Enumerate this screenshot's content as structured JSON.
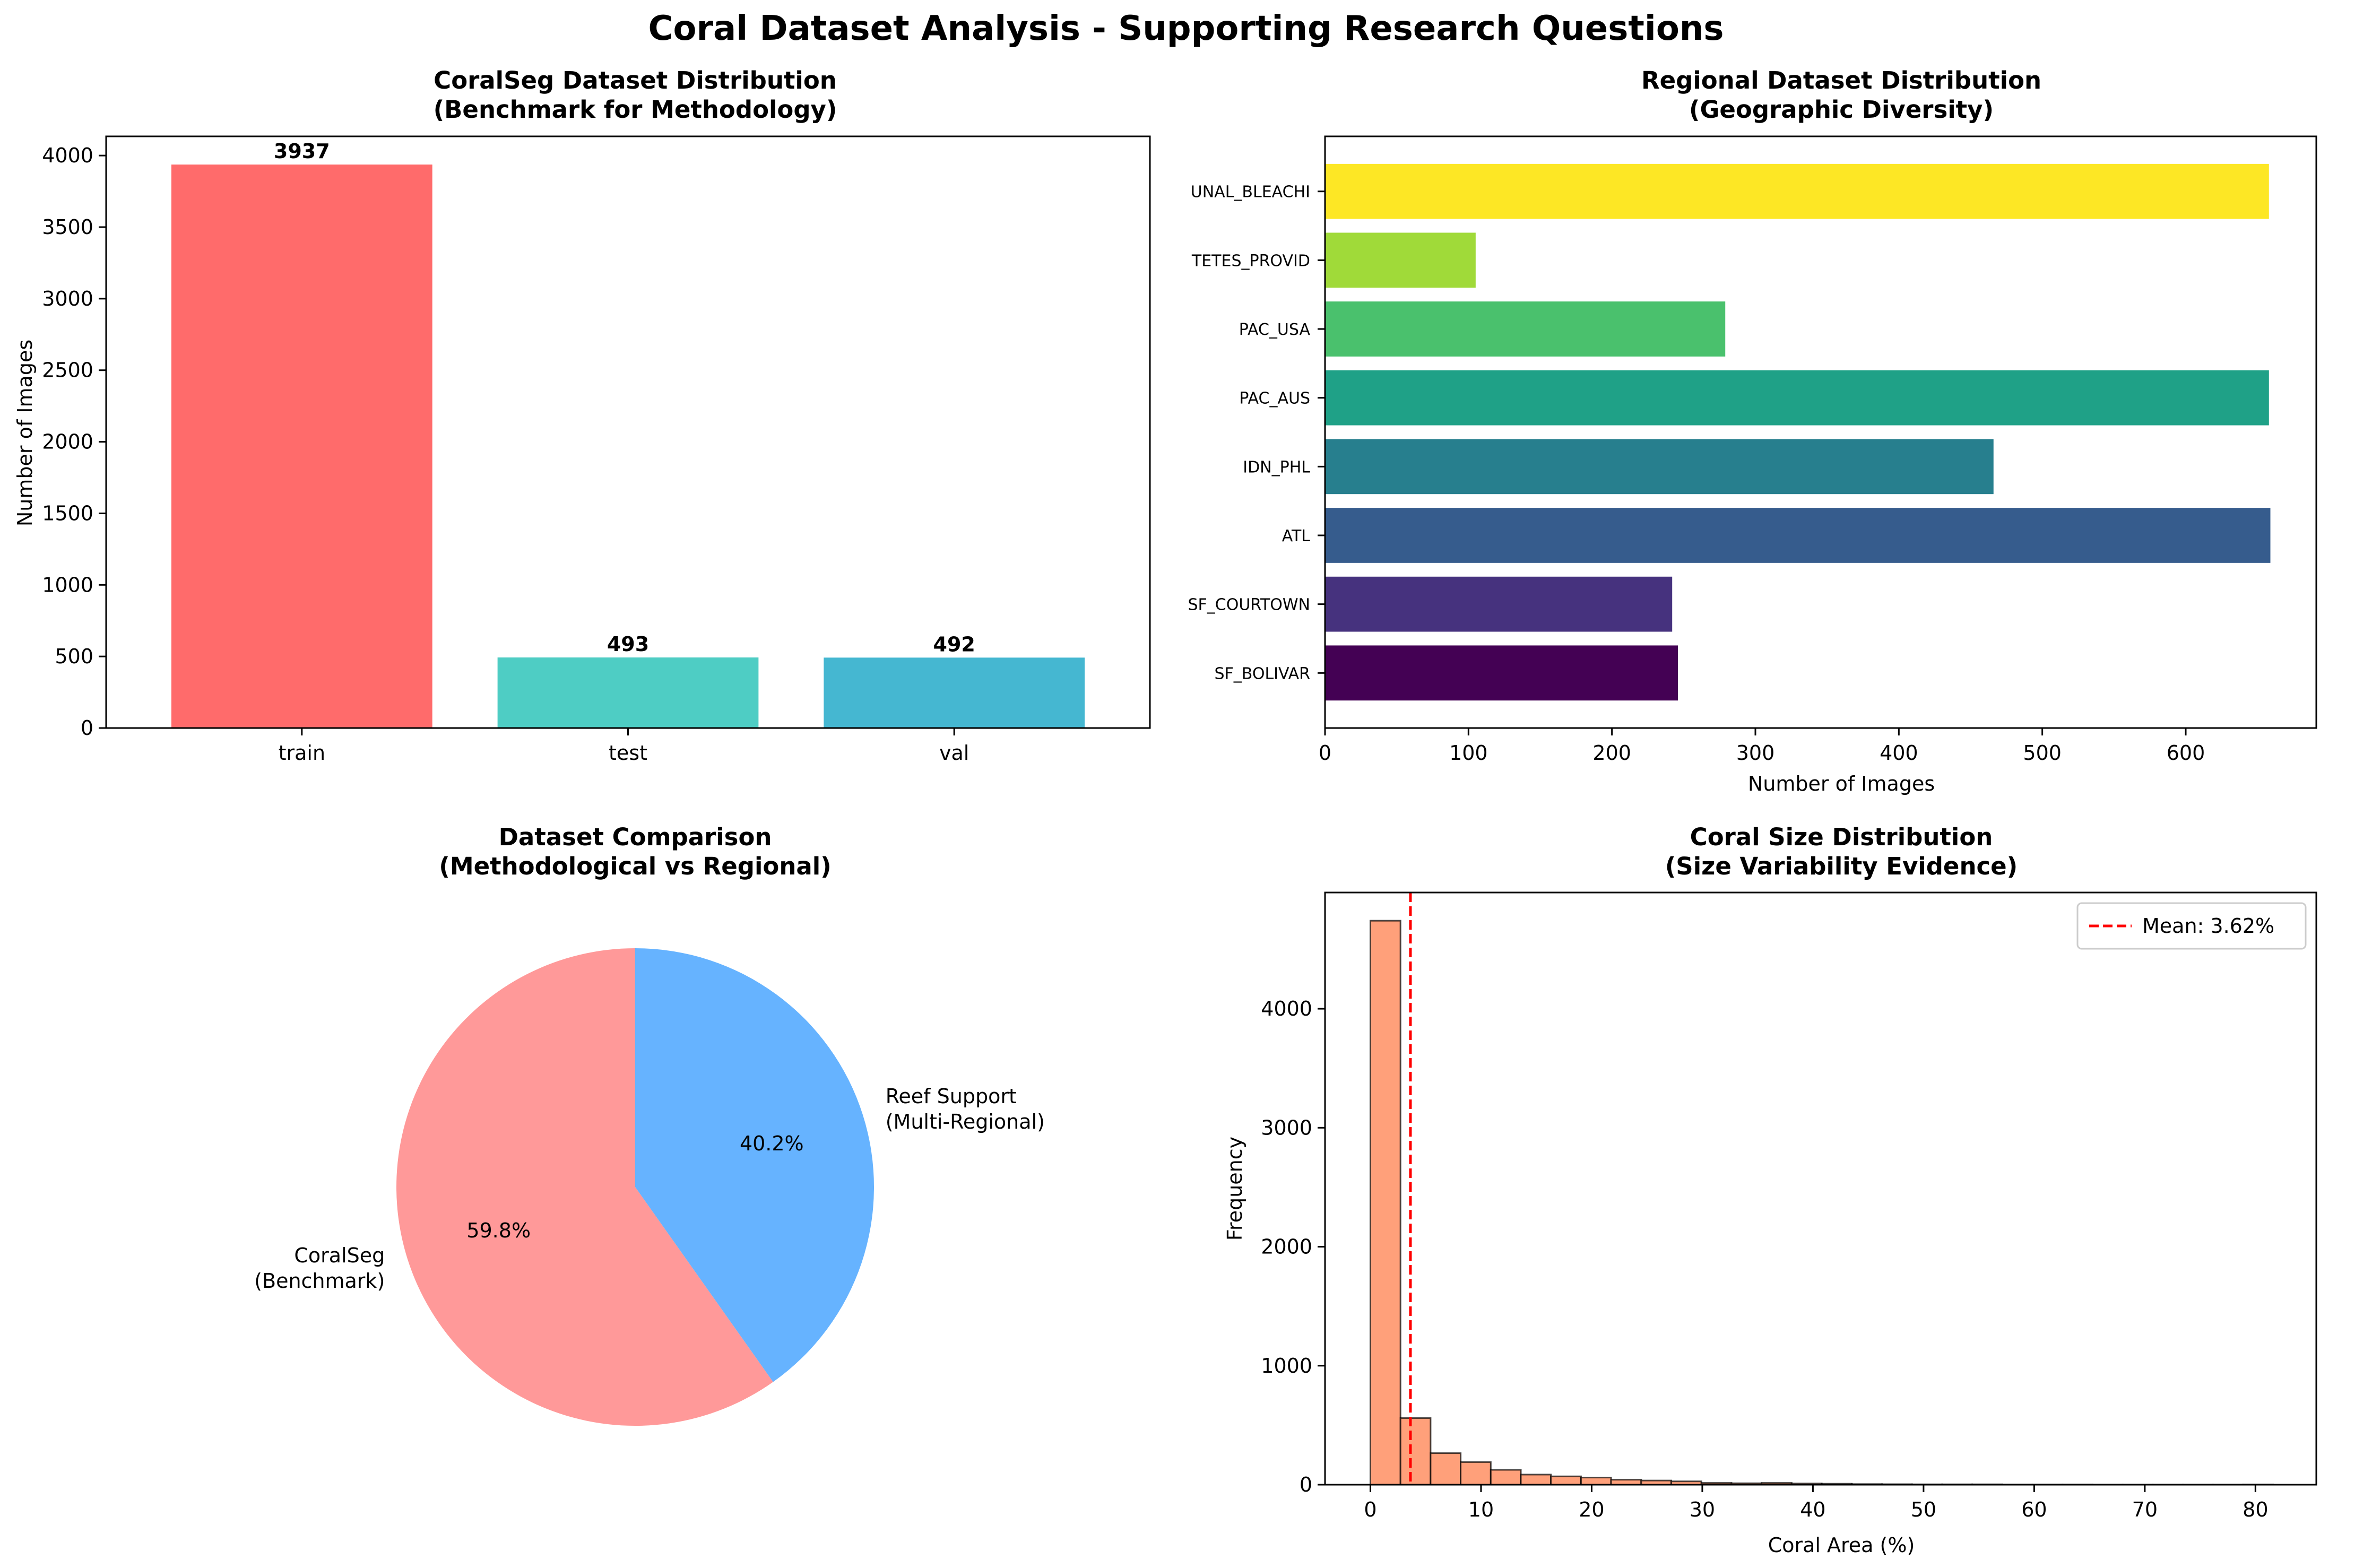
{
  "suptitle": "Coral Dataset Analysis - Supporting Research Questions",
  "colors": {
    "split_bars": [
      "#ff6b6b",
      "#4ecdc4",
      "#45b7d1"
    ],
    "region_bars": [
      "#440154",
      "#46327e",
      "#365c8d",
      "#277f8e",
      "#1fa187",
      "#4ac16d",
      "#a0da39",
      "#fde725"
    ],
    "pie": [
      "#ff9999",
      "#66b3ff"
    ],
    "hist_fill": "#ffa07a",
    "hist_edge": "#000000",
    "mean_line": "#ff0000"
  },
  "chart_data": [
    {
      "type": "bar",
      "title": "CoralSeg Dataset Distribution",
      "subtitle": "(Benchmark for Methodology)",
      "xlabel": "",
      "ylabel": "Number of Images",
      "categories": [
        "train",
        "test",
        "val"
      ],
      "values": [
        3937,
        493,
        492
      ],
      "data_labels": [
        "3937",
        "493",
        "492"
      ],
      "ylim": [
        0,
        4134
      ],
      "yticks": [
        0,
        500,
        1000,
        1500,
        2000,
        2500,
        3000,
        3500,
        4000
      ],
      "grid": false
    },
    {
      "type": "bar",
      "orientation": "horizontal",
      "title": "Regional Dataset Distribution",
      "subtitle": "(Geographic Diversity)",
      "xlabel": "Number of Images",
      "ylabel": "",
      "categories": [
        "SF_BOLIVAR",
        "SF_COURTOWN",
        "ATL",
        "IDN_PHL",
        "PAC_AUS",
        "PAC_USA",
        "TETES_PROVID",
        "UNAL_BLEACHI"
      ],
      "values": [
        246,
        242,
        659,
        466,
        658,
        279,
        105,
        658
      ],
      "xlim": [
        0,
        691
      ],
      "xticks": [
        0,
        100,
        200,
        300,
        400,
        500,
        600
      ],
      "grid": false
    },
    {
      "type": "pie",
      "title": "Dataset Comparison",
      "subtitle": "(Methodological vs Regional)",
      "slices": [
        {
          "label_line1": "CoralSeg",
          "label_line2": "(Benchmark)",
          "value": 59.8,
          "pct_label": "59.8%"
        },
        {
          "label_line1": "Reef Support",
          "label_line2": "(Multi-Regional)",
          "value": 40.2,
          "pct_label": "40.2%"
        }
      ],
      "start_angle_deg": 90,
      "direction": "counterclockwise"
    },
    {
      "type": "bar",
      "subtype": "histogram",
      "title": "Coral Size Distribution",
      "subtitle": "(Size Variability Evidence)",
      "xlabel": "Coral Area (%)",
      "ylabel": "Frequency",
      "bin_start": 0,
      "bin_width": 2.72,
      "counts": [
        4740,
        560,
        265,
        190,
        125,
        85,
        70,
        60,
        42,
        35,
        28,
        15,
        12,
        15,
        10,
        8,
        5,
        4,
        3,
        3,
        3,
        2,
        2,
        2,
        1,
        1,
        1,
        1,
        1,
        2
      ],
      "xlim": [
        -4.1,
        85.5
      ],
      "ylim": [
        0,
        4977
      ],
      "xticks": [
        0,
        10,
        20,
        30,
        40,
        50,
        60,
        70,
        80
      ],
      "yticks": [
        0,
        1000,
        2000,
        3000,
        4000
      ],
      "mean": 3.62,
      "legend": "Mean: 3.62%",
      "legend_position": "top-right",
      "grid": false
    }
  ]
}
